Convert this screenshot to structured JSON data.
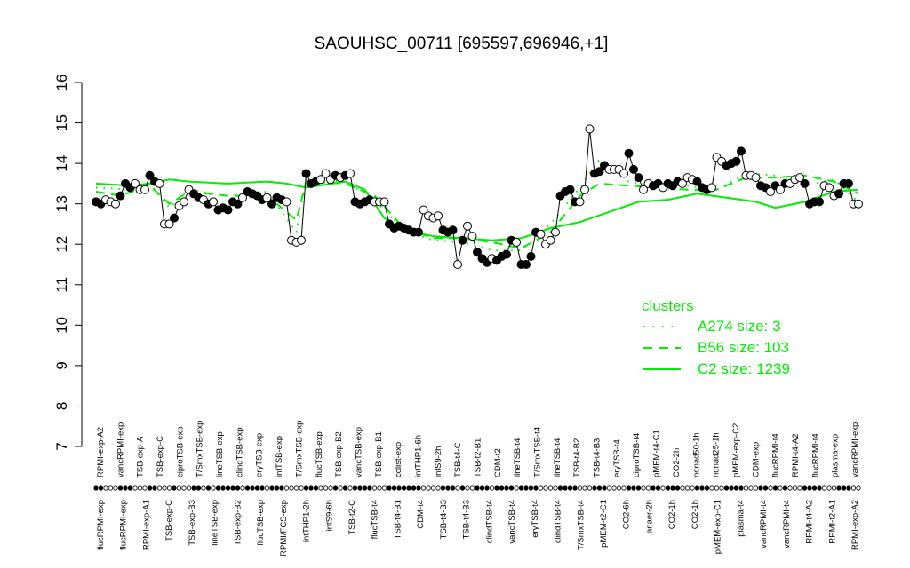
{
  "chart_data": {
    "type": "line",
    "title": "SAOUHSC_00711 [695597,696946,+1]",
    "xlabel": "",
    "ylabel": "",
    "ylim": [
      7,
      16
    ],
    "y_ticks": [
      7,
      8,
      9,
      10,
      11,
      12,
      13,
      14,
      15,
      16
    ],
    "grid": false,
    "legend_position": "right",
    "legend": {
      "title": "clusters",
      "items": [
        {
          "label": "A274 size: 3",
          "style": "dotted",
          "color": "#00ee00"
        },
        {
          "label": "B56 size: 103",
          "style": "dashed",
          "color": "#00ee00"
        },
        {
          "label": "C2 size: 1239",
          "style": "solid",
          "color": "#00ee00"
        }
      ]
    },
    "top_labels": [
      "RPMI-exp-A2",
      "vancRPMI-exp",
      "TSB-exp-A",
      "TSB-exp-C",
      "ciproTSB-exp",
      "T/SmxTSB-exp",
      "lineTSB-exp",
      "clindTSB-exp",
      "eryTSB-exp",
      "intTSB-exp",
      "T/SmxTSB-exp",
      "flucTSB-exp",
      "TSB-exp-B2",
      "vancTSB-exp",
      "TSB-exp-B1",
      "colist-exp",
      "intTHP1-6h",
      "intS9-2h",
      "TSB-t4-C",
      "TSB-t2-B1",
      "CDM-t2",
      "lineTSB-t4",
      "T/SmxTSB-t4",
      "lineTSB-t4",
      "TSB-t4-B2",
      "TSB-t4-B3",
      "eryTSB-t4",
      "ciproTSB-t4",
      "pMEM-t4-C1",
      "CO2-2h",
      "nonad50-1h",
      "nonad25-1h",
      "pMEM-exp-C2",
      "CDM-exp",
      "flucRPMI-t4",
      "RPMI-t4-A2",
      "flucRPMI-t4",
      "plasma-exp",
      "vancRPMI-exp"
    ],
    "bottom_labels": [
      "flucRPMI-exp",
      "flucRPMI-exp",
      "RPMI-exp-A1",
      "TSB-exp-C",
      "TSB-exp-B3",
      "lineTSB-exp",
      "TSB-exp-B2",
      "flucTSB-exp",
      "RPMI/FCS-exp",
      "intTHP1-2h",
      "intS9-6h",
      "TSB-t2-C",
      "flucTSB-t4",
      "TSB-t4-B1",
      "CDM-t4",
      "TSB-t4-B3",
      "TSB-t4-B3",
      "clindTSB-t4",
      "vancTSB-t4",
      "eryTSB-t4",
      "clindTSB-t4",
      "T/SmxTSB-t4",
      "pMEM-t2-C1",
      "CO2-6h",
      "anaer-2h",
      "CO2-1h",
      "CO2-1h",
      "pMEM-exp-C1",
      "plasma-t4",
      "vancRPMI-t4",
      "vancRPMI-t4",
      "RPMI-t4-A2",
      "RPMI-t2-A1",
      "RPMI-exp-A2"
    ],
    "x_index": [
      1,
      2,
      3,
      4,
      5,
      6,
      7,
      8,
      9,
      10,
      11,
      12,
      13,
      14,
      15,
      16,
      17,
      18,
      19,
      20,
      21,
      22,
      23,
      24,
      25,
      26,
      27,
      28,
      29,
      30,
      31,
      32,
      33,
      34,
      35,
      36,
      37,
      38,
      39,
      40,
      41,
      42,
      43,
      44,
      45,
      46,
      47,
      48,
      49,
      50,
      51,
      52,
      53,
      54,
      55,
      56,
      57,
      58,
      59,
      60,
      61,
      62,
      63,
      64,
      65,
      66,
      67,
      68,
      69,
      70,
      71,
      72,
      73,
      74,
      75,
      76,
      77,
      78,
      79,
      80,
      81,
      82,
      83,
      84,
      85,
      86,
      87,
      88,
      89,
      90,
      91,
      92,
      93,
      94,
      95,
      96,
      97,
      98,
      99,
      100,
      101,
      102,
      103,
      104,
      105,
      106,
      107,
      108,
      109,
      110,
      111,
      112,
      113,
      114,
      115,
      116,
      117,
      118,
      119,
      120,
      121,
      122,
      123,
      124,
      125,
      126,
      127,
      128,
      129,
      130,
      131,
      132,
      133,
      134,
      135,
      136,
      137,
      138,
      139,
      140,
      141,
      142,
      143,
      144,
      145,
      146,
      147,
      148,
      149,
      150,
      151,
      152,
      153,
      154,
      155,
      156,
      157
    ],
    "series": [
      {
        "role": "sample",
        "values": [
          13.05,
          13.0,
          13.1,
          13.05,
          13.0,
          13.2,
          13.5,
          13.4,
          13.5,
          13.35,
          13.35,
          13.7,
          13.55,
          13.5,
          12.5,
          12.5,
          12.65,
          12.95,
          13.05,
          13.35,
          13.25,
          13.15,
          13.1,
          13.0,
          13.05,
          12.85,
          12.9,
          12.85,
          13.05,
          13.0,
          13.15,
          13.3,
          13.25,
          13.2,
          13.1,
          13.15,
          13.0,
          13.15,
          13.1,
          13.05,
          12.1,
          12.05,
          12.1,
          13.75,
          13.5,
          13.55,
          13.6,
          13.75,
          13.6,
          13.7,
          13.65,
          13.7,
          13.75,
          13.05,
          13.0,
          13.05,
          13.1,
          13.05,
          13.05,
          13.05,
          12.5,
          12.4,
          12.45,
          12.4,
          12.35,
          12.3,
          12.3,
          12.85,
          12.7,
          12.65,
          12.7,
          12.35,
          12.3,
          12.35,
          11.5,
          12.1,
          12.45,
          12.2,
          11.8,
          11.65,
          11.55,
          11.65,
          11.6,
          11.7,
          11.75,
          12.1,
          12.05,
          11.5,
          11.5,
          11.7,
          12.3,
          12.25,
          12.0,
          12.1,
          12.3,
          13.2,
          13.3,
          13.35,
          13.05,
          13.05,
          13.35,
          14.85,
          13.75,
          13.8,
          13.95,
          13.85,
          13.85,
          13.85,
          13.75,
          14.25,
          13.85,
          13.65,
          13.35,
          13.5,
          13.45,
          13.5,
          13.4,
          13.5,
          13.45,
          13.55,
          13.5,
          13.65,
          13.6,
          13.55,
          13.4,
          13.35,
          13.4,
          14.15,
          14.05,
          13.95,
          14.0,
          14.05,
          14.3,
          13.7,
          13.7,
          13.65,
          13.45,
          13.4,
          13.3,
          13.45,
          13.35,
          13.5,
          13.5,
          13.6,
          13.65,
          13.5,
          13.0,
          13.05,
          13.05,
          13.45,
          13.4,
          13.2,
          13.25,
          13.5,
          13.5,
          13.0,
          13.0
        ],
        "filled": [
          1,
          1,
          0,
          0,
          0,
          1,
          1,
          1,
          0,
          0,
          0,
          1,
          1,
          0,
          0,
          0,
          1,
          0,
          0,
          0,
          1,
          1,
          0,
          1,
          0,
          1,
          1,
          1,
          1,
          1,
          0,
          1,
          1,
          1,
          1,
          0,
          1,
          1,
          1,
          0,
          0,
          0,
          0,
          1,
          1,
          1,
          0,
          0,
          0,
          1,
          0,
          1,
          0,
          1,
          1,
          1,
          1,
          0,
          0,
          0,
          1,
          1,
          1,
          1,
          1,
          1,
          1,
          0,
          0,
          0,
          0,
          1,
          1,
          1,
          0,
          1,
          0,
          0,
          1,
          1,
          1,
          0,
          1,
          1,
          1,
          1,
          0,
          1,
          1,
          1,
          1,
          0,
          0,
          0,
          0,
          1,
          1,
          1,
          1,
          0,
          0,
          0,
          1,
          1,
          1,
          0,
          0,
          0,
          0,
          1,
          1,
          1,
          0,
          0,
          1,
          1,
          0,
          1,
          1,
          1,
          0,
          0,
          0,
          1,
          1,
          1,
          0,
          0,
          0,
          1,
          1,
          1,
          1,
          0,
          0,
          0,
          1,
          1,
          0,
          1,
          0,
          1,
          0,
          0,
          0,
          1,
          1,
          1,
          1,
          0,
          0,
          0,
          1,
          1,
          1,
          0,
          0
        ]
      },
      {
        "role": "cluster",
        "name": "A274 size: 3",
        "style": "dotted",
        "x": [
          1,
          8,
          12,
          16,
          20,
          28,
          36,
          42,
          44,
          52,
          58,
          64,
          70,
          76,
          82,
          88,
          94,
          100,
          104,
          110,
          116,
          122,
          128,
          134,
          140,
          146,
          152,
          157
        ],
        "values": [
          13.4,
          13.35,
          13.5,
          12.9,
          13.35,
          13.2,
          13.3,
          12.3,
          13.6,
          13.55,
          13.1,
          12.35,
          12.1,
          12.05,
          11.85,
          11.85,
          12.5,
          13.4,
          14.1,
          13.55,
          13.4,
          13.45,
          13.35,
          13.75,
          13.7,
          13.45,
          13.6,
          13.05
        ]
      },
      {
        "role": "cluster",
        "name": "B56 size: 103",
        "style": "dashed",
        "x": [
          1,
          6,
          12,
          16,
          20,
          28,
          36,
          42,
          44,
          52,
          58,
          64,
          70,
          76,
          82,
          88,
          94,
          100,
          104,
          110,
          116,
          122,
          128,
          134,
          140,
          146,
          152,
          157
        ],
        "values": [
          13.3,
          13.2,
          13.45,
          13.0,
          13.3,
          13.2,
          13.2,
          12.6,
          13.55,
          13.5,
          13.2,
          12.4,
          12.15,
          12.15,
          12.05,
          11.9,
          12.3,
          13.2,
          13.5,
          13.45,
          13.4,
          13.35,
          13.35,
          13.65,
          13.65,
          13.7,
          13.55,
          13.25
        ]
      },
      {
        "role": "cluster",
        "name": "C2 size: 1239",
        "style": "solid",
        "x": [
          1,
          8,
          12,
          16,
          20,
          28,
          36,
          40,
          44,
          52,
          56,
          60,
          64,
          70,
          76,
          82,
          88,
          94,
          100,
          106,
          112,
          118,
          124,
          130,
          136,
          140,
          146,
          152,
          157
        ],
        "values": [
          13.5,
          13.45,
          13.5,
          13.6,
          13.55,
          13.5,
          13.55,
          13.5,
          13.4,
          13.55,
          13.35,
          12.65,
          12.35,
          12.2,
          12.15,
          12.1,
          12.15,
          12.4,
          12.55,
          12.8,
          13.05,
          13.1,
          13.25,
          13.15,
          13.05,
          12.9,
          13.05,
          13.3,
          13.35
        ]
      }
    ]
  }
}
